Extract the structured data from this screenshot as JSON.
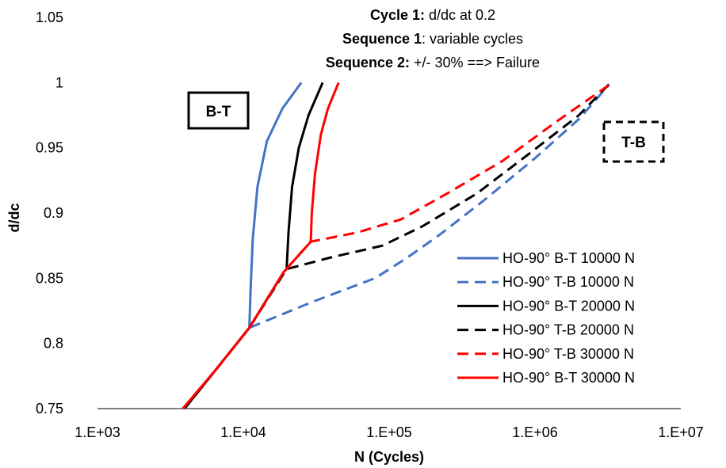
{
  "chart_data": {
    "type": "line",
    "xscale": "log",
    "xlim": [
      1000,
      10000000
    ],
    "ylim": [
      0.75,
      1.05
    ],
    "xlabel": "N (Cycles)",
    "ylabel": "d/dc",
    "x_ticks": [
      1000,
      10000,
      100000,
      1000000,
      10000000
    ],
    "x_tick_labels": [
      "1.E+03",
      "1.E+04",
      "1.E+05",
      "1.E+06",
      "1.E+07"
    ],
    "y_ticks": [
      0.75,
      0.8,
      0.85,
      0.9,
      0.95,
      1,
      1.05
    ],
    "y_tick_labels": [
      "0.75",
      "0.8",
      "0.85",
      "0.9",
      "0.95",
      "1",
      "1.05"
    ],
    "grid": false,
    "legend_position": "right",
    "annotation": {
      "line1_bold": "Cycle 1:",
      "line1_rest": " d/dc at 0.2",
      "line2_bold": "Sequence 1",
      "line2_rest": ": variable cycles",
      "line3_bold": "Sequence 2:",
      "line3_rest": " +/- 30% ==> Failure"
    },
    "labels": {
      "bt_box": "B-T",
      "tb_box": "T-B"
    },
    "series": [
      {
        "name": "HO-90° B-T 10000 N",
        "color": "#4472C4",
        "dash": "solid",
        "points": [
          [
            3900,
            0.75
          ],
          [
            6500,
            0.78
          ],
          [
            11000,
            0.812
          ],
          [
            11200,
            0.84
          ],
          [
            11600,
            0.88
          ],
          [
            12500,
            0.92
          ],
          [
            14500,
            0.955
          ],
          [
            18500,
            0.98
          ],
          [
            25000,
            1.0
          ]
        ]
      },
      {
        "name": "HO-90° T-B 10000 N",
        "color": "#4472C4",
        "dash": "dashed",
        "points": [
          [
            3900,
            0.75
          ],
          [
            6500,
            0.78
          ],
          [
            11000,
            0.812
          ],
          [
            30000,
            0.832
          ],
          [
            80000,
            0.85
          ],
          [
            130000,
            0.865
          ],
          [
            220000,
            0.883
          ],
          [
            450000,
            0.91
          ],
          [
            1000000,
            0.942
          ],
          [
            2000000,
            0.972
          ],
          [
            3200000,
            0.998
          ]
        ]
      },
      {
        "name": "HO-90° B-T 20000 N",
        "color": "#000000",
        "dash": "solid",
        "points": [
          [
            3950,
            0.75
          ],
          [
            6500,
            0.78
          ],
          [
            11000,
            0.812
          ],
          [
            19000,
            0.855
          ],
          [
            19800,
            0.857
          ],
          [
            20400,
            0.885
          ],
          [
            21600,
            0.92
          ],
          [
            24000,
            0.95
          ],
          [
            28000,
            0.975
          ],
          [
            35000,
            1.0
          ]
        ]
      },
      {
        "name": "HO-90° T-B 20000 N",
        "color": "#000000",
        "dash": "dashed",
        "points": [
          [
            3950,
            0.75
          ],
          [
            6500,
            0.78
          ],
          [
            11000,
            0.812
          ],
          [
            19800,
            0.857
          ],
          [
            40000,
            0.866
          ],
          [
            90000,
            0.875
          ],
          [
            170000,
            0.89
          ],
          [
            400000,
            0.915
          ],
          [
            900000,
            0.945
          ],
          [
            2000000,
            0.975
          ],
          [
            3300000,
            1.0
          ]
        ]
      },
      {
        "name": "HO-90° T-B 30000 N",
        "color": "#FF0000",
        "dash": "dashed",
        "points": [
          [
            3850,
            0.75
          ],
          [
            6500,
            0.78
          ],
          [
            11000,
            0.812
          ],
          [
            19000,
            0.855
          ],
          [
            29000,
            0.878
          ],
          [
            60000,
            0.885
          ],
          [
            120000,
            0.895
          ],
          [
            250000,
            0.915
          ],
          [
            600000,
            0.94
          ],
          [
            1400000,
            0.97
          ],
          [
            3400000,
            1.0
          ]
        ]
      },
      {
        "name": "HO-90° B-T 30000 N",
        "color": "#FF0000",
        "dash": "solid",
        "points": [
          [
            3850,
            0.75
          ],
          [
            6500,
            0.78
          ],
          [
            11000,
            0.812
          ],
          [
            19000,
            0.855
          ],
          [
            29000,
            0.878
          ],
          [
            29500,
            0.9
          ],
          [
            31000,
            0.93
          ],
          [
            34000,
            0.96
          ],
          [
            38000,
            0.98
          ],
          [
            45000,
            1.0
          ]
        ]
      }
    ]
  }
}
